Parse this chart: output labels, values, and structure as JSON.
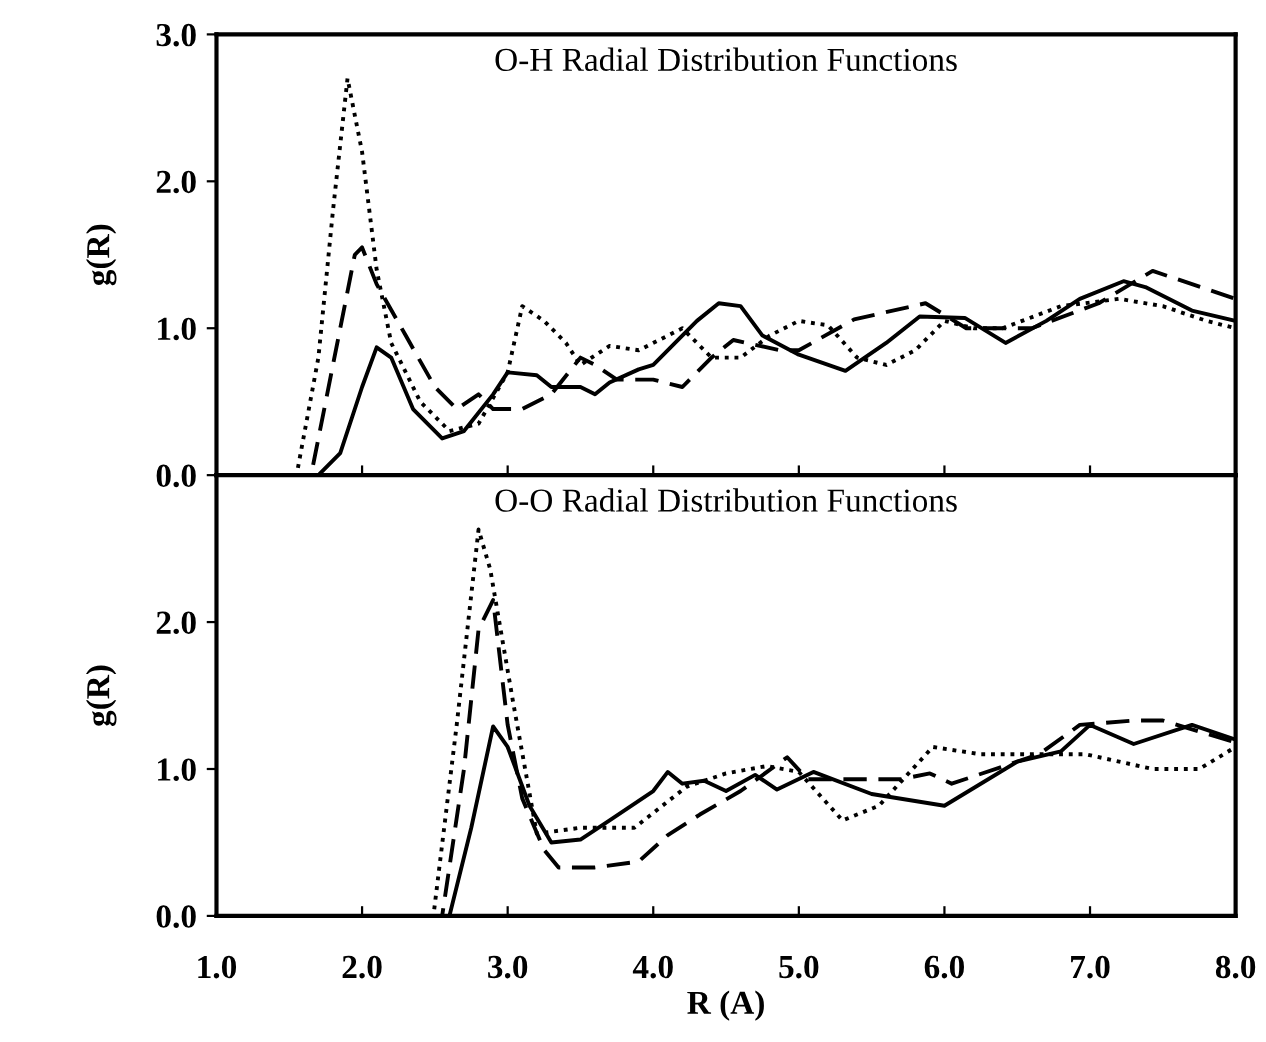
{
  "chart_data": [
    {
      "type": "line",
      "title": "O-H Radial Distribution Functions",
      "ylabel": "g(R)",
      "xlim": [
        1.0,
        8.0
      ],
      "xticks": [
        1,
        2,
        3,
        4,
        5,
        6,
        7,
        8
      ],
      "ylim": [
        0,
        3.0
      ],
      "yticks": [
        {
          "value": 0,
          "label": "0.0"
        },
        {
          "value": 1,
          "label": "1.0"
        },
        {
          "value": 2,
          "label": "2.0"
        },
        {
          "value": 3,
          "label": "3.0"
        }
      ],
      "tick_labels": "y",
      "grid": false,
      "series": [
        {
          "color": "#000000",
          "line_style": "solid",
          "x": [
            1.0,
            1.7,
            1.85,
            2.0,
            2.1,
            2.2,
            2.35,
            2.55,
            2.7,
            2.9,
            3.0,
            3.2,
            3.3,
            3.5,
            3.6,
            3.7,
            3.9,
            4.0,
            4.3,
            4.45,
            4.6,
            4.75,
            5.0,
            5.32,
            5.6,
            5.83,
            6.14,
            6.42,
            6.7,
            6.93,
            7.23,
            7.38,
            7.7,
            8.0
          ],
          "values": [
            0,
            0,
            0.15,
            0.6,
            0.87,
            0.8,
            0.45,
            0.25,
            0.3,
            0.55,
            0.7,
            0.68,
            0.6,
            0.6,
            0.55,
            0.63,
            0.72,
            0.75,
            1.05,
            1.17,
            1.15,
            0.95,
            0.82,
            0.71,
            0.9,
            1.08,
            1.07,
            0.9,
            1.05,
            1.2,
            1.32,
            1.28,
            1.12,
            1.05
          ]
        },
        {
          "color": "#000000",
          "line_style": "dashed",
          "x": [
            1.0,
            1.65,
            1.85,
            1.95,
            2.0,
            2.1,
            2.3,
            2.5,
            2.65,
            2.8,
            2.9,
            3.1,
            3.3,
            3.5,
            3.6,
            3.75,
            4.0,
            4.2,
            4.4,
            4.55,
            4.87,
            5.0,
            5.38,
            5.87,
            6.15,
            6.6,
            7.06,
            7.43,
            8.0
          ],
          "values": [
            0,
            0,
            1.0,
            1.5,
            1.55,
            1.3,
            0.95,
            0.6,
            0.45,
            0.55,
            0.45,
            0.45,
            0.55,
            0.8,
            0.75,
            0.65,
            0.65,
            0.6,
            0.8,
            0.92,
            0.85,
            0.85,
            1.06,
            1.17,
            1.0,
            1.0,
            1.17,
            1.39,
            1.2
          ]
        },
        {
          "color": "#000000",
          "line_style": "dotted",
          "x": [
            1.0,
            1.55,
            1.7,
            1.8,
            1.9,
            2.0,
            2.1,
            2.2,
            2.4,
            2.6,
            2.8,
            3.0,
            3.1,
            3.25,
            3.4,
            3.5,
            3.7,
            3.9,
            4.2,
            4.4,
            4.6,
            4.8,
            5.0,
            5.2,
            5.4,
            5.6,
            5.8,
            6.0,
            6.2,
            6.4,
            6.8,
            7.2,
            7.5,
            7.8,
            8.0
          ],
          "values": [
            0,
            0,
            0.8,
            1.8,
            2.7,
            2.2,
            1.4,
            0.9,
            0.5,
            0.3,
            0.35,
            0.7,
            1.15,
            1.05,
            0.9,
            0.75,
            0.88,
            0.85,
            1.0,
            0.8,
            0.8,
            0.95,
            1.05,
            1.02,
            0.8,
            0.75,
            0.85,
            1.05,
            1.0,
            1.0,
            1.15,
            1.2,
            1.15,
            1.05,
            1.0
          ]
        }
      ]
    },
    {
      "type": "line",
      "title": "O-O Radial Distribution Functions",
      "ylabel": "g(R)",
      "xlabel": "R (A)",
      "xlim": [
        1.0,
        8.0
      ],
      "xticks": [
        {
          "value": 1,
          "label": "1.0"
        },
        {
          "value": 2,
          "label": "2.0"
        },
        {
          "value": 3,
          "label": "3.0"
        },
        {
          "value": 4,
          "label": "4.0"
        },
        {
          "value": 5,
          "label": "5.0"
        },
        {
          "value": 6,
          "label": "6.0"
        },
        {
          "value": 7,
          "label": "7.0"
        },
        {
          "value": 8,
          "label": "8.0"
        }
      ],
      "ylim": [
        0,
        3.0
      ],
      "yticks": [
        {
          "value": 0,
          "label": "0.0"
        },
        {
          "value": 1,
          "label": "1.0"
        },
        {
          "value": 2,
          "label": "2.0"
        }
      ],
      "grid": false,
      "series": [
        {
          "color": "#000000",
          "line_style": "solid",
          "x": [
            1.0,
            2.6,
            2.75,
            2.9,
            3.0,
            3.15,
            3.3,
            3.5,
            3.7,
            4.0,
            4.1,
            4.2,
            4.35,
            4.5,
            4.7,
            4.85,
            5.1,
            5.5,
            6.0,
            6.5,
            6.8,
            7.0,
            7.3,
            7.7,
            8.0
          ],
          "values": [
            0,
            0,
            0.6,
            1.29,
            1.15,
            0.75,
            0.5,
            0.52,
            0.65,
            0.85,
            0.98,
            0.9,
            0.92,
            0.85,
            0.96,
            0.86,
            0.98,
            0.83,
            0.75,
            1.05,
            1.12,
            1.3,
            1.17,
            1.3,
            1.2
          ]
        },
        {
          "color": "#000000",
          "line_style": "dashed",
          "x": [
            1.0,
            2.55,
            2.7,
            2.8,
            2.9,
            3.0,
            3.1,
            3.25,
            3.35,
            3.6,
            3.9,
            4.1,
            4.32,
            4.6,
            4.92,
            5.06,
            5.7,
            5.9,
            6.05,
            6.65,
            6.93,
            7.3,
            7.5,
            8.0
          ],
          "values": [
            0,
            0,
            1.0,
            1.95,
            2.15,
            1.3,
            0.8,
            0.45,
            0.33,
            0.33,
            0.37,
            0.55,
            0.69,
            0.85,
            1.08,
            0.93,
            0.93,
            0.97,
            0.9,
            1.1,
            1.3,
            1.33,
            1.33,
            1.18
          ]
        },
        {
          "color": "#000000",
          "line_style": "dotted",
          "x": [
            1.0,
            2.49,
            2.65,
            2.8,
            2.88,
            3.04,
            3.2,
            3.5,
            3.87,
            4.23,
            4.5,
            4.78,
            5.0,
            5.3,
            5.55,
            5.92,
            6.25,
            6.62,
            6.97,
            7.43,
            7.75,
            8.0
          ],
          "values": [
            0,
            0,
            1.3,
            2.63,
            2.36,
            1.44,
            0.56,
            0.6,
            0.6,
            0.88,
            0.97,
            1.02,
            0.98,
            0.65,
            0.75,
            1.15,
            1.1,
            1.1,
            1.1,
            1.0,
            1.0,
            1.15
          ]
        }
      ]
    }
  ]
}
